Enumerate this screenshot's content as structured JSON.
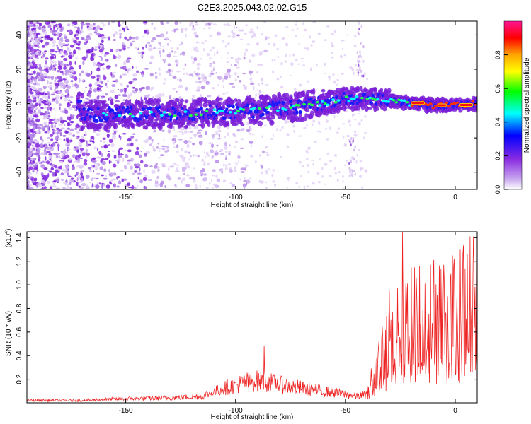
{
  "title": "C2E3.2025.043.02.02.G15",
  "chart_data": [
    {
      "type": "heatmap",
      "xlabel": "Height of straight line (km)",
      "ylabel": "Frequency (Hz)",
      "xlim": [
        -195,
        10
      ],
      "ylim": [
        -50,
        48
      ],
      "xticks": [
        -150,
        -100,
        -50,
        0
      ],
      "yticks": [
        -40,
        -20,
        0,
        20,
        40
      ],
      "colorbar": {
        "label": "Normalized spectral amplitude",
        "range": [
          0,
          1
        ],
        "ticks": [
          "0.0",
          "0.2",
          "0.4",
          "0.6",
          "0.8"
        ],
        "colors": [
          "#ffffff",
          "#8a2be2",
          "#0000ff",
          "#00ffff",
          "#00ff00",
          "#ffff00",
          "#ffa500",
          "#ff0000",
          "#ff1493"
        ]
      },
      "ridge": [
        {
          "x": -170,
          "f": -7
        },
        {
          "x": -150,
          "f": -6
        },
        {
          "x": -130,
          "f": -6
        },
        {
          "x": -110,
          "f": -5
        },
        {
          "x": -90,
          "f": -4
        },
        {
          "x": -75,
          "f": -2
        },
        {
          "x": -60,
          "f": 0
        },
        {
          "x": -50,
          "f": 3
        },
        {
          "x": -40,
          "f": 3
        },
        {
          "x": -25,
          "f": 1
        },
        {
          "x": -10,
          "f": -1
        },
        {
          "x": 0,
          "f": -1
        },
        {
          "x": 10,
          "f": 0
        }
      ]
    },
    {
      "type": "line",
      "xlabel": "Height of straight line (km)",
      "ylabel": "SNR (10 * v/v)",
      "yscale_label": "(x10",
      "yscale_exp": "4",
      "xlim": [
        -195,
        10
      ],
      "ylim": [
        0,
        1.45
      ],
      "xticks": [
        -150,
        -100,
        -50,
        0
      ],
      "yticks": [
        "0.2",
        "0.4",
        "0.6",
        "0.8",
        "1.0",
        "1.2",
        "1.4"
      ],
      "series": [
        {
          "color": "#ee2222",
          "envelope": [
            {
              "x": -195,
              "y": 0.03
            },
            {
              "x": -170,
              "y": 0.03
            },
            {
              "x": -150,
              "y": 0.05
            },
            {
              "x": -130,
              "y": 0.06
            },
            {
              "x": -115,
              "y": 0.08
            },
            {
              "x": -105,
              "y": 0.18
            },
            {
              "x": -95,
              "y": 0.25
            },
            {
              "x": -88,
              "y": 0.27
            },
            {
              "x": -80,
              "y": 0.22
            },
            {
              "x": -70,
              "y": 0.18
            },
            {
              "x": -55,
              "y": 0.12
            },
            {
              "x": -45,
              "y": 0.08
            },
            {
              "x": -40,
              "y": 0.1
            },
            {
              "x": -35,
              "y": 0.35
            },
            {
              "x": -28,
              "y": 0.55
            },
            {
              "x": -22,
              "y": 0.7
            },
            {
              "x": -15,
              "y": 0.75
            },
            {
              "x": -8,
              "y": 0.78
            },
            {
              "x": 0,
              "y": 0.8
            },
            {
              "x": 5,
              "y": 0.85
            },
            {
              "x": 10,
              "y": 1.0
            }
          ],
          "peaks": [
            {
              "x": -24,
              "y": 1.45
            },
            {
              "x": -20,
              "y": 1.15
            },
            {
              "x": -10,
              "y": 1.1
            },
            {
              "x": 10,
              "y": 1.35
            },
            {
              "x": -87,
              "y": 0.48
            },
            {
              "x": -30,
              "y": 0.95
            }
          ]
        }
      ]
    }
  ]
}
